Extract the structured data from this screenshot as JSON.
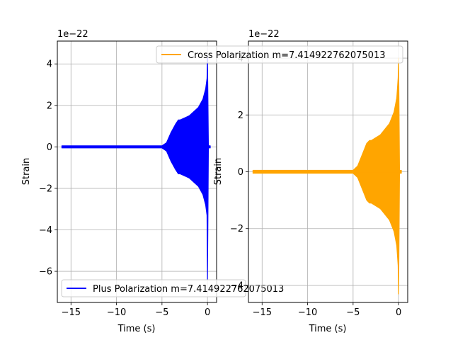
{
  "chart_data": [
    {
      "type": "line",
      "xlabel": "Time (s)",
      "ylabel": "Strain",
      "offset_text": "1e−22",
      "xlim": [
        -16.5,
        1.0
      ],
      "ylim": [
        -7.5,
        5.1
      ],
      "xticks": [
        -15,
        -10,
        -5,
        0
      ],
      "xtick_labels": [
        "−15",
        "−10",
        "−5",
        "0"
      ],
      "yticks": [
        4,
        2,
        0,
        -2,
        -4,
        -6
      ],
      "ytick_labels": [
        "4",
        "2",
        "0",
        "−2",
        "−4",
        "−6"
      ],
      "grid": true,
      "legend": "lower-left",
      "series": [
        {
          "name": "Plus Polarization m=7.414922762075013",
          "color": "#0000ff",
          "x": [
            -16,
            -10,
            -5,
            -4.5,
            -4,
            -3.5,
            -3.2,
            -3,
            -2.5,
            -2,
            -1.5,
            -1,
            -0.5,
            -0.2,
            -0.05,
            0,
            0.1,
            0.3
          ],
          "upper": [
            0.05,
            0.05,
            0.05,
            0.2,
            0.7,
            1.1,
            1.3,
            1.3,
            1.4,
            1.5,
            1.7,
            1.9,
            2.3,
            2.8,
            3.3,
            4.3,
            0.05,
            0.05
          ],
          "lower": [
            -0.05,
            -0.05,
            -0.05,
            -0.2,
            -0.7,
            -1.1,
            -1.3,
            -1.3,
            -1.4,
            -1.5,
            -1.7,
            -1.9,
            -2.3,
            -2.8,
            -3.3,
            -6.4,
            -0.05,
            -0.05
          ]
        }
      ]
    },
    {
      "type": "line",
      "xlabel": "Time (s)",
      "ylabel": "Strain",
      "offset_text": "1e−22",
      "xlim": [
        -16.5,
        1.0
      ],
      "ylim": [
        -4.6,
        4.6
      ],
      "xticks": [
        -15,
        -10,
        -5,
        0
      ],
      "xtick_labels": [
        "−15",
        "−10",
        "−5",
        "0"
      ],
      "yticks": [
        4,
        2,
        0,
        -2,
        -4
      ],
      "ytick_labels": [
        "4",
        "2",
        "0",
        "−2",
        "−4"
      ],
      "grid": true,
      "legend": "top",
      "series": [
        {
          "name": "Cross Polarization m=7.414922762075013",
          "color": "#ffa500",
          "x": [
            -16,
            -10,
            -5,
            -4.5,
            -4,
            -3.5,
            -3.2,
            -3,
            -2.5,
            -2,
            -1.5,
            -1,
            -0.5,
            -0.2,
            -0.05,
            0,
            0.1,
            0.3
          ],
          "upper": [
            0.05,
            0.05,
            0.05,
            0.2,
            0.6,
            1.0,
            1.1,
            1.1,
            1.2,
            1.3,
            1.5,
            1.7,
            2.1,
            2.6,
            3.3,
            4.0,
            0.05,
            0.05
          ],
          "lower": [
            -0.05,
            -0.05,
            -0.05,
            -0.2,
            -0.6,
            -1.0,
            -1.1,
            -1.1,
            -1.2,
            -1.3,
            -1.5,
            -1.7,
            -2.1,
            -2.6,
            -3.3,
            -4.3,
            -0.05,
            -0.05
          ]
        }
      ]
    }
  ]
}
